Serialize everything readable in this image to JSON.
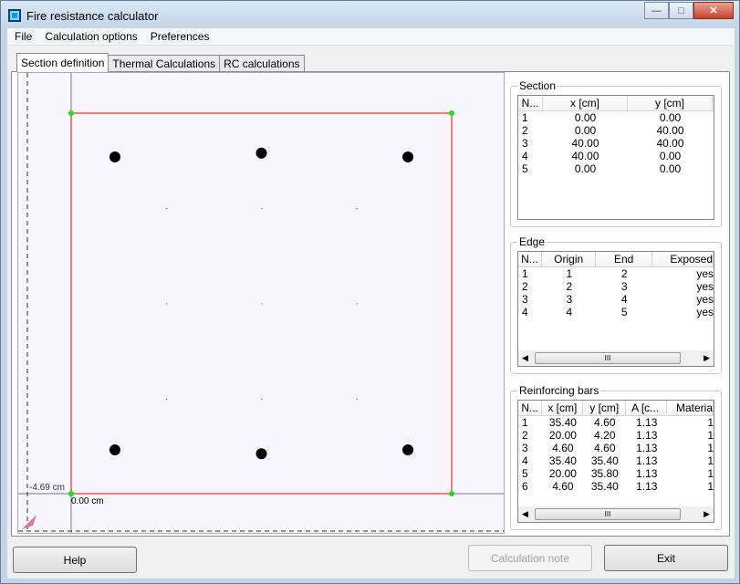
{
  "window": {
    "title": "Fire resistance calculator",
    "minimize": "—",
    "maximize": "□",
    "close": "✕"
  },
  "menu": [
    "File",
    "Calculation options",
    "Preferences"
  ],
  "tabs": [
    {
      "label": "Section definition",
      "active": true
    },
    {
      "label": "Thermal Calculations",
      "active": false
    },
    {
      "label": "RC calculations",
      "active": false
    }
  ],
  "canvas": {
    "label_left": "-4.69 cm",
    "label_origin": "0.00 cm",
    "section_color": "#ff0000",
    "node_color": "#22dd22"
  },
  "section": {
    "title": "Section",
    "columns": [
      "N...",
      "x [cm]",
      "y [cm]"
    ],
    "rows": [
      [
        "1",
        "0.00",
        "0.00"
      ],
      [
        "2",
        "0.00",
        "40.00"
      ],
      [
        "3",
        "40.00",
        "40.00"
      ],
      [
        "4",
        "40.00",
        "0.00"
      ],
      [
        "5",
        "0.00",
        "0.00"
      ]
    ]
  },
  "edge": {
    "title": "Edge",
    "columns": [
      "N...",
      "Origin",
      "End",
      "Exposed"
    ],
    "rows": [
      [
        "1",
        "1",
        "2",
        "yes"
      ],
      [
        "2",
        "2",
        "3",
        "yes"
      ],
      [
        "3",
        "3",
        "4",
        "yes"
      ],
      [
        "4",
        "4",
        "5",
        "yes"
      ]
    ],
    "scroll_thumb": "III"
  },
  "bars": {
    "title": "Reinforcing bars",
    "columns": [
      "N...",
      "x [cm]",
      "y [cm]",
      "A [c...",
      "Materia"
    ],
    "rows": [
      [
        "1",
        "35.40",
        "4.60",
        "1.13",
        "1"
      ],
      [
        "2",
        "20.00",
        "4.20",
        "1.13",
        "1"
      ],
      [
        "3",
        "4.60",
        "4.60",
        "1.13",
        "1"
      ],
      [
        "4",
        "35.40",
        "35.40",
        "1.13",
        "1"
      ],
      [
        "5",
        "20.00",
        "35.80",
        "1.13",
        "1"
      ],
      [
        "6",
        "4.60",
        "35.40",
        "1.13",
        "1"
      ]
    ],
    "scroll_thumb": "III"
  },
  "buttons": {
    "help": "Help",
    "calc_note": "Calculation note",
    "exit": "Exit"
  }
}
